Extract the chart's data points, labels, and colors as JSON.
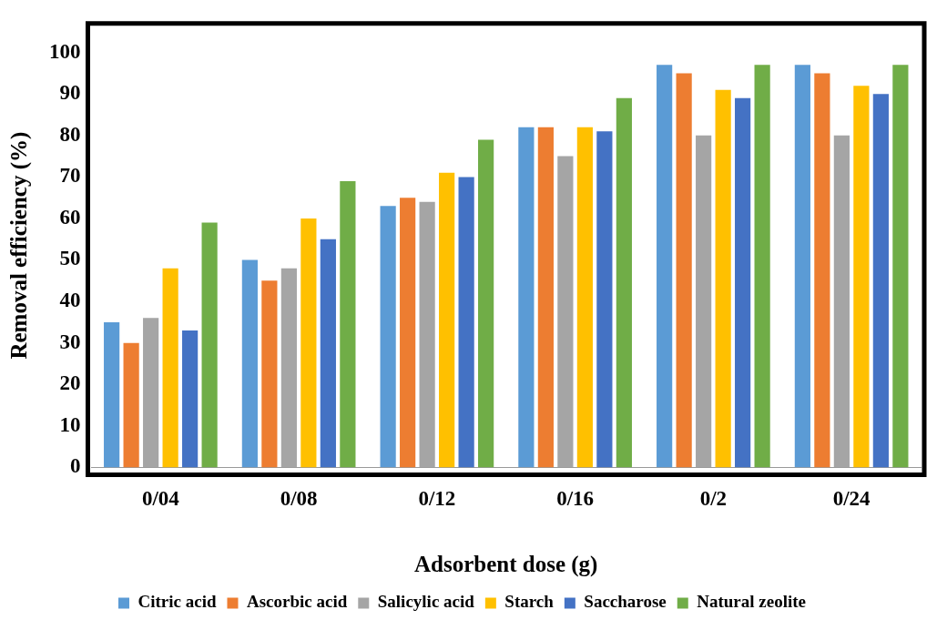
{
  "chart_data": {
    "type": "bar",
    "xlabel": "Adsorbent dose (g)",
    "ylabel": "Removal efficiency (%)",
    "categories": [
      "0/04",
      "0/08",
      "0/12",
      "0/16",
      "0/2",
      "0/24"
    ],
    "series": [
      {
        "name": "Citric acid",
        "color": "#5b9bd5",
        "values": [
          35,
          50,
          63,
          82,
          97,
          97
        ]
      },
      {
        "name": "Ascorbic acid",
        "color": "#ed7d31",
        "values": [
          30,
          45,
          65,
          82,
          95,
          95
        ]
      },
      {
        "name": "Salicylic acid",
        "color": "#a5a5a5",
        "values": [
          36,
          48,
          64,
          75,
          80,
          80
        ]
      },
      {
        "name": "Starch",
        "color": "#ffc000",
        "values": [
          48,
          60,
          71,
          82,
          91,
          92
        ]
      },
      {
        "name": "Saccharose",
        "color": "#4472c4",
        "values": [
          33,
          55,
          70,
          81,
          89,
          90
        ]
      },
      {
        "name": "Natural zeolite",
        "color": "#70ad47",
        "values": [
          59,
          69,
          79,
          89,
          97,
          97
        ]
      }
    ],
    "ylim": [
      0,
      107
    ],
    "yticks": [
      0,
      10,
      20,
      30,
      40,
      50,
      60,
      70,
      80,
      90,
      100
    ],
    "grid": false,
    "legend": "bottom"
  }
}
